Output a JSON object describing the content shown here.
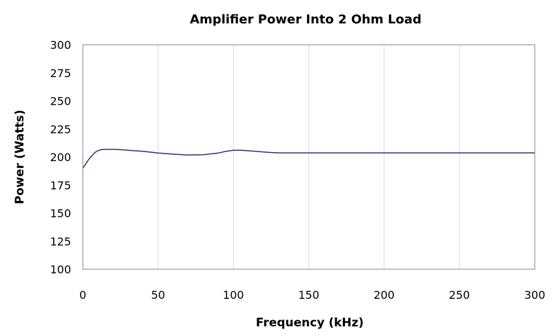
{
  "chart_data": {
    "type": "line",
    "title": "Amplifier Power Into 2 Ohm Load",
    "xlabel": "Frequency (kHz)",
    "ylabel": "Power (Watts)",
    "xlim": [
      0,
      300
    ],
    "ylim": [
      100,
      300
    ],
    "xticks": [
      0,
      50,
      100,
      150,
      200,
      250,
      300
    ],
    "yticks": [
      100,
      125,
      150,
      175,
      200,
      225,
      250,
      275,
      300
    ],
    "grid": "vertical",
    "legend": "none",
    "series": [
      {
        "color": "#2e2e7a",
        "x": [
          0,
          2,
          4,
          6,
          8,
          10,
          12,
          15,
          20,
          25,
          30,
          40,
          50,
          60,
          70,
          80,
          90,
          95,
          100,
          105,
          110,
          115,
          120,
          125,
          130,
          150,
          200,
          250,
          300
        ],
        "y": [
          190,
          194,
          198,
          201,
          204,
          205.5,
          206.5,
          206.8,
          206.8,
          206.5,
          206,
          205,
          203.5,
          202.5,
          201.8,
          202,
          203.5,
          205,
          206,
          206,
          205.5,
          205,
          204.5,
          204,
          203.7,
          203.7,
          203.7,
          203.7,
          203.7
        ]
      }
    ]
  }
}
